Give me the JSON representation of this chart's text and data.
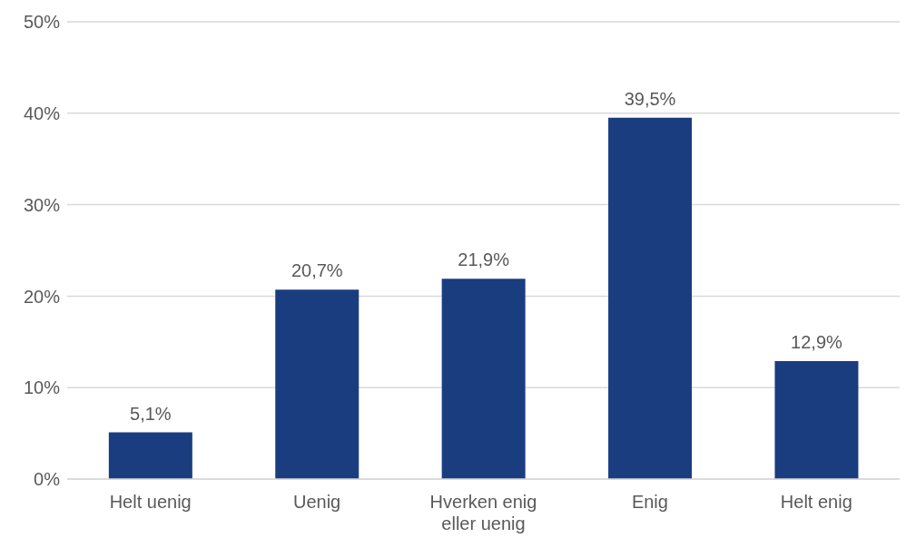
{
  "chart_data": {
    "type": "bar",
    "categories": [
      "Helt uenig",
      "Uenig",
      "Hverken enig eller uenig",
      "Enig",
      "Helt enig"
    ],
    "values": [
      5.1,
      20.7,
      21.9,
      39.5,
      12.9
    ],
    "value_labels": [
      "5,1%",
      "20,7%",
      "21,9%",
      "39,5%",
      "12,9%"
    ],
    "color": "#1a3d80",
    "ylim": [
      0,
      50
    ],
    "yticks": [
      {
        "value": 0,
        "label": "0%"
      },
      {
        "value": 10,
        "label": "10%"
      },
      {
        "value": 20,
        "label": "20%"
      },
      {
        "value": 30,
        "label": "30%"
      },
      {
        "value": 40,
        "label": "40%"
      },
      {
        "value": 50,
        "label": "50%"
      }
    ],
    "grid": "y"
  }
}
